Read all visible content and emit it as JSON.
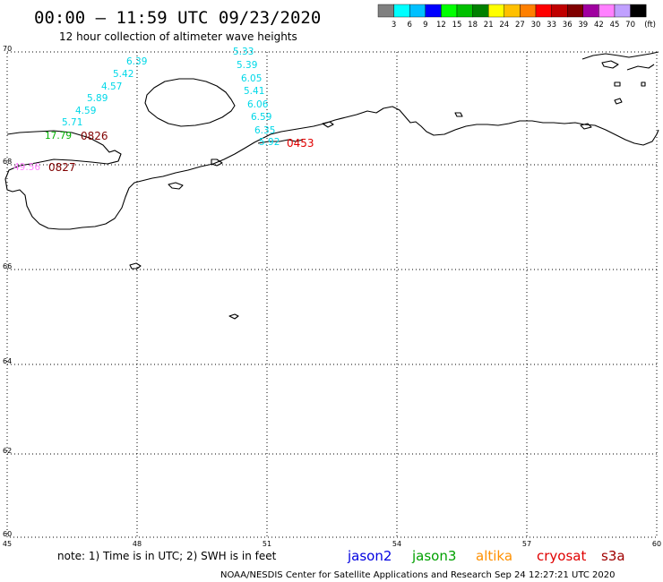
{
  "header": {
    "title": "00:00 – 11:59 UTC 09/23/2020",
    "subtitle": "12 hour collection of altimeter wave heights"
  },
  "colorbar": {
    "colors": [
      "#808080",
      "#00ffff",
      "#00c0ff",
      "#0000ff",
      "#00ff00",
      "#00c000",
      "#008000",
      "#ffff00",
      "#ffc000",
      "#ff8000",
      "#ff0000",
      "#c00000",
      "#800000",
      "#a000a0",
      "#ff80ff",
      "#c0a0ff",
      "#000000"
    ],
    "labels": [
      "3",
      "6",
      "9",
      "12",
      "15",
      "18",
      "21",
      "24",
      "27",
      "30",
      "33",
      "36",
      "39",
      "42",
      "45",
      "70"
    ],
    "unit": "(ft)"
  },
  "map": {
    "lon_labels": [
      "45",
      "48",
      "51",
      "54",
      "57",
      "60"
    ],
    "lat_labels": [
      "70",
      "68",
      "66",
      "64",
      "62",
      "60"
    ],
    "grid": true
  },
  "observations": [
    {
      "value": "6.39",
      "color": "#00d8e8"
    },
    {
      "value": "5.42",
      "color": "#00d8e8"
    },
    {
      "value": "4.57",
      "color": "#00d8e8"
    },
    {
      "value": "5.89",
      "color": "#00d8e8"
    },
    {
      "value": "4.59",
      "color": "#00d8e8"
    },
    {
      "value": "5.71",
      "color": "#00d8e8"
    },
    {
      "value": "17.79",
      "color": "#00b000"
    },
    {
      "value": "49.56",
      "color": "#ff80ff"
    },
    {
      "value": "5.33",
      "color": "#00d8e8"
    },
    {
      "value": "5.39",
      "color": "#00d8e8"
    },
    {
      "value": "6.05",
      "color": "#00d8e8"
    },
    {
      "value": "5.41",
      "color": "#00d8e8"
    },
    {
      "value": "6.06",
      "color": "#00d8e8"
    },
    {
      "value": "6.59",
      "color": "#00d8e8"
    },
    {
      "value": "6.35",
      "color": "#00d8e8"
    },
    {
      "value": "5.92",
      "color": "#00d8e8"
    }
  ],
  "pass_times": [
    {
      "value": "0826",
      "color": "#800000"
    },
    {
      "value": "0827",
      "color": "#800000"
    },
    {
      "value": "0453",
      "color": "#e00000"
    }
  ],
  "footer": {
    "note": "note:  1) Time is in UTC;  2) SWH is in feet",
    "satellites": [
      {
        "name": "jason2",
        "color": "#0000e0"
      },
      {
        "name": "jason3",
        "color": "#00a000"
      },
      {
        "name": "altika",
        "color": "#ff9000"
      },
      {
        "name": "cryosat",
        "color": "#e00000"
      },
      {
        "name": "s3a",
        "color": "#a00000"
      }
    ],
    "credit": "NOAA/NESDIS Center for Satellite Applications and Research    Sep 24 12:27:21 UTC 2020"
  }
}
